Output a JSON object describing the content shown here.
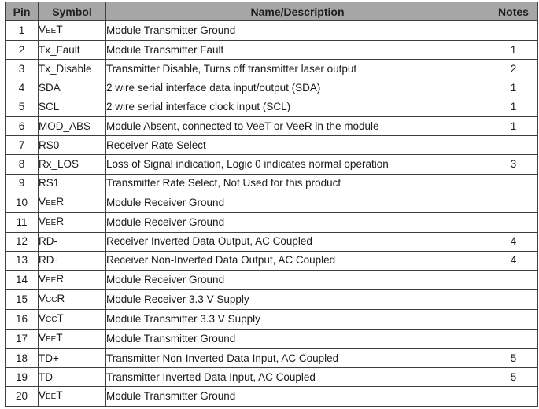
{
  "headers": {
    "pin": "Pin",
    "symbol": "Symbol",
    "description": "Name/Description",
    "notes": "Notes"
  },
  "rows": [
    {
      "pin": "1",
      "symbol": "VEET",
      "description": "Module Transmitter Ground",
      "notes": ""
    },
    {
      "pin": "2",
      "symbol": "Tx_Fault",
      "description": "Module Transmitter Fault",
      "notes": "1"
    },
    {
      "pin": "3",
      "symbol": "Tx_Disable",
      "description": "Transmitter Disable, Turns off transmitter laser output",
      "notes": "2"
    },
    {
      "pin": "4",
      "symbol": "SDA",
      "description": "2 wire serial interface data input/output (SDA)",
      "notes": "1"
    },
    {
      "pin": "5",
      "symbol": "SCL",
      "description": "2 wire serial interface clock input (SCL)",
      "notes": "1"
    },
    {
      "pin": "6",
      "symbol": "MOD_ABS",
      "description": " Module Absent, connected to VeeT or VeeR in the module",
      "notes": "1"
    },
    {
      "pin": "7",
      "symbol": "RS0",
      "description": "Receiver Rate Select",
      "notes": ""
    },
    {
      "pin": "8",
      "symbol": "Rx_LOS",
      "description": "Loss of Signal indication, Logic 0 indicates normal operation",
      "notes": "3"
    },
    {
      "pin": "9",
      "symbol": "RS1",
      "description": "Transmitter Rate Select, Not Used for this product",
      "notes": ""
    },
    {
      "pin": "10",
      "symbol": "VEER",
      "description": "Module Receiver Ground",
      "notes": ""
    },
    {
      "pin": "11",
      "symbol": "VEER",
      "description": "Module Receiver Ground",
      "notes": ""
    },
    {
      "pin": "12",
      "symbol": "RD-",
      "description": "Receiver Inverted Data Output, AC Coupled",
      "notes": "4"
    },
    {
      "pin": "13",
      "symbol": "RD+",
      "description": "Receiver Non-Inverted Data Output, AC Coupled",
      "notes": "4"
    },
    {
      "pin": "14",
      "symbol": "VEER",
      "description": "Module Receiver Ground",
      "notes": ""
    },
    {
      "pin": "15",
      "symbol": "VCCR",
      "description": "Module Receiver 3.3 V Supply",
      "notes": ""
    },
    {
      "pin": "16",
      "symbol": "VCCT",
      "description": "Module Transmitter 3.3 V Supply",
      "notes": ""
    },
    {
      "pin": "17",
      "symbol": "VEET",
      "description": "Module Transmitter Ground",
      "notes": ""
    },
    {
      "pin": "18",
      "symbol": "TD+",
      "description": "Transmitter Non-Inverted Data Input, AC Coupled",
      "notes": "5"
    },
    {
      "pin": "19",
      "symbol": "TD-",
      "description": "Transmitter Inverted Data Input, AC Coupled",
      "notes": "5"
    },
    {
      "pin": "20",
      "symbol": "VEET",
      "description": "Module Transmitter Ground",
      "notes": ""
    }
  ]
}
